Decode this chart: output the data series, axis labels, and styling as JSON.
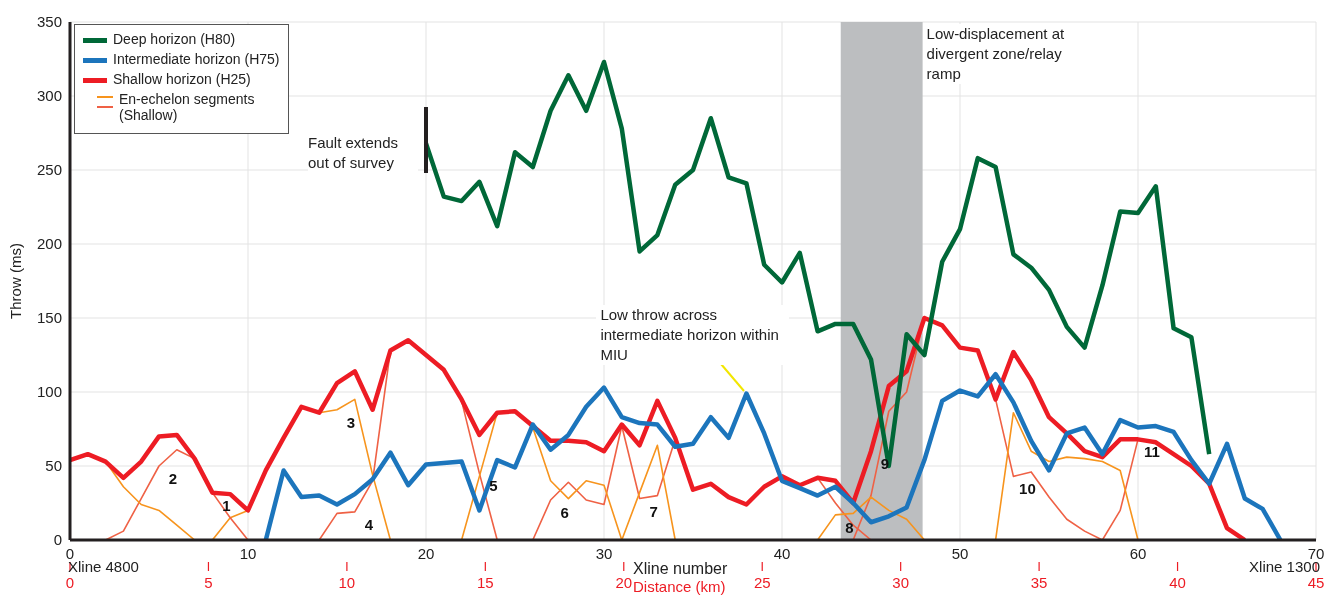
{
  "chart_data": {
    "type": "line",
    "xlabel": "Xline number",
    "x2label": "Distance (km)",
    "ylabel": "Throw (ms)",
    "xlim": [
      0,
      70
    ],
    "xticks": [
      0,
      10,
      20,
      30,
      40,
      50,
      60,
      70
    ],
    "x2lim": [
      0,
      45
    ],
    "x2ticks": [
      0,
      5,
      10,
      15,
      20,
      25,
      30,
      35,
      40,
      45
    ],
    "ylim": [
      0,
      350
    ],
    "yticks": [
      0,
      50,
      100,
      150,
      200,
      250,
      300,
      350
    ],
    "grid": true,
    "legend": "top left",
    "series": [
      {
        "name": "Deep horizon (H80)",
        "color": "#006838",
        "x": [
          20,
          21,
          22,
          23,
          24,
          25,
          26,
          27,
          28,
          29,
          30,
          31,
          32,
          33,
          34,
          35,
          36,
          37,
          38,
          39,
          40,
          41,
          42,
          43,
          44,
          45,
          46,
          47,
          48,
          49,
          50,
          51,
          52,
          53,
          54,
          55,
          56,
          57,
          58,
          59,
          60,
          61,
          62,
          63,
          64
        ],
        "values": [
          268,
          232,
          229,
          242,
          212,
          262,
          252,
          290,
          314,
          290,
          323,
          278,
          195,
          206,
          240,
          250,
          285,
          245,
          241,
          186,
          174,
          194,
          141,
          146,
          146,
          122,
          50,
          139,
          125,
          188,
          210,
          258,
          252,
          193,
          184,
          169,
          144,
          130,
          172,
          222,
          221,
          239,
          143,
          137,
          58
        ]
      },
      {
        "name": "Intermediate horizon (H75)",
        "color": "#1c75bc",
        "x": [
          11,
          12,
          13,
          14,
          15,
          16,
          17,
          18,
          19,
          20,
          21,
          22,
          23,
          24,
          25,
          26,
          27,
          28,
          29,
          30,
          31,
          32,
          33,
          34,
          35,
          36,
          37,
          38,
          39,
          40,
          41,
          42,
          43,
          44,
          45,
          46,
          47,
          48,
          49,
          50,
          51,
          52,
          53,
          54,
          55,
          56,
          57,
          58,
          59,
          60,
          61,
          62,
          63,
          64,
          65,
          66,
          67,
          68
        ],
        "values": [
          0,
          47,
          29,
          30,
          24,
          31,
          41,
          59,
          37,
          51,
          52,
          53,
          20,
          54,
          49,
          78,
          61,
          71,
          90,
          103,
          83,
          79,
          78,
          63,
          65,
          83,
          69,
          99,
          72,
          40,
          35,
          30,
          36,
          25,
          12,
          16,
          22,
          54,
          94,
          101,
          97,
          112,
          93,
          67,
          47,
          72,
          76,
          58,
          81,
          76,
          77,
          73,
          54,
          38,
          65,
          28,
          21,
          0
        ]
      },
      {
        "name": "Shallow horizon (H25)",
        "color": "#ed1c24",
        "x": [
          0,
          1,
          2,
          3,
          4,
          5,
          6,
          7,
          8,
          9,
          10,
          11,
          12,
          13,
          14,
          15,
          16,
          17,
          18,
          19,
          20,
          21,
          22,
          23,
          24,
          25,
          26,
          27,
          28,
          29,
          30,
          31,
          32,
          33,
          34,
          35,
          36,
          37,
          38,
          39,
          40,
          41,
          42,
          43,
          44,
          45,
          46,
          47,
          48,
          49,
          50,
          51,
          52,
          53,
          54,
          55,
          56,
          57,
          58,
          59,
          60,
          61,
          62,
          63,
          64,
          65,
          66
        ],
        "values": [
          54,
          58,
          53,
          42,
          53,
          70,
          71,
          55,
          32,
          31,
          20,
          47,
          69,
          90,
          86,
          106,
          114,
          88,
          128,
          135,
          125,
          115,
          95,
          71,
          86,
          87,
          77,
          67,
          67,
          66,
          60,
          78,
          64,
          94,
          69,
          34,
          38,
          29,
          24,
          36,
          43,
          37,
          42,
          40,
          25,
          60,
          104,
          114,
          150,
          145,
          130,
          128,
          95,
          127,
          108,
          83,
          72,
          60,
          56,
          68,
          68,
          66,
          58,
          50,
          38,
          8,
          0
        ]
      },
      {
        "name": "En-echelon segments (Shallow)",
        "color": "#f7941d",
        "x": [
          2,
          3,
          4,
          5,
          6,
          7
        ],
        "values": [
          53,
          36,
          24,
          20,
          10,
          0
        ]
      },
      {
        "color": "#ef6145",
        "x": [
          2,
          3,
          4,
          5,
          6,
          7,
          8,
          9,
          10
        ],
        "values": [
          0,
          6,
          28,
          50,
          61,
          55,
          32,
          15,
          0
        ]
      },
      {
        "color": "#f7941d",
        "x": [
          8,
          9,
          10
        ],
        "values": [
          0,
          15,
          20
        ]
      },
      {
        "color": "#f7941d",
        "x": [
          14,
          15,
          16,
          17,
          18
        ],
        "values": [
          86,
          88,
          95,
          44,
          0
        ]
      },
      {
        "color": "#ef6145",
        "x": [
          14,
          15,
          16,
          17,
          18
        ],
        "values": [
          0,
          18,
          19,
          40,
          128
        ]
      },
      {
        "color": "#f7941d",
        "x": [
          22,
          23,
          24
        ],
        "values": [
          0,
          43,
          86
        ]
      },
      {
        "color": "#ef6145",
        "x": [
          22,
          23,
          24
        ],
        "values": [
          94,
          45,
          0
        ]
      },
      {
        "color": "#f7941d",
        "x": [
          26,
          27,
          28,
          29,
          30,
          31
        ],
        "values": [
          76,
          40,
          28,
          40,
          37,
          0
        ]
      },
      {
        "color": "#ef6145",
        "x": [
          26,
          27,
          28,
          29,
          30,
          31
        ],
        "values": [
          0,
          27,
          39,
          27,
          24,
          77
        ]
      },
      {
        "color": "#f7941d",
        "x": [
          31,
          32,
          33,
          34
        ],
        "values": [
          0,
          32,
          64,
          0
        ]
      },
      {
        "color": "#ef6145",
        "x": [
          31,
          32,
          33,
          34
        ],
        "values": [
          77,
          28,
          30,
          68
        ]
      },
      {
        "color": "#f7941d",
        "x": [
          42,
          43,
          44,
          45,
          46,
          47,
          48
        ],
        "values": [
          0,
          17,
          18,
          29,
          20,
          14,
          0
        ]
      },
      {
        "color": "#ef6145",
        "x": [
          42,
          43,
          44,
          45
        ],
        "values": [
          42,
          25,
          10,
          0
        ]
      },
      {
        "color": "#ef6145",
        "x": [
          44,
          45,
          46,
          47,
          48
        ],
        "values": [
          0,
          30,
          87,
          100,
          150
        ]
      },
      {
        "color": "#f7941d",
        "x": [
          52,
          53,
          54,
          55,
          56,
          57,
          58,
          59,
          60
        ],
        "values": [
          0,
          86,
          60,
          53,
          56,
          55,
          53,
          47,
          0
        ]
      },
      {
        "color": "#ef6145",
        "x": [
          52,
          53,
          54,
          55,
          56,
          57,
          58
        ],
        "values": [
          95,
          43,
          46,
          29,
          14,
          6,
          0
        ]
      },
      {
        "color": "#ef6145",
        "x": [
          58,
          59,
          60
        ],
        "values": [
          0,
          20,
          68
        ]
      }
    ],
    "bands": [
      {
        "axis": "x",
        "from": 43.3,
        "to": 47.9,
        "label": "Low-displacement at divergent zone/relay ramp",
        "color": "#bcbec0"
      }
    ],
    "annotations": [
      {
        "text": "Fault extends out of survey",
        "x": 20,
        "y": 268
      },
      {
        "text": "Low throw across intermediate horizon within MIU",
        "x": 38,
        "y": 99
      },
      "Xline 4800",
      "Xline 1300",
      {
        "text": "1",
        "x": 8,
        "y": 32
      },
      {
        "text": "2",
        "x": 5,
        "y": 50
      },
      {
        "text": "3",
        "x": 15,
        "y": 88
      },
      {
        "text": "4",
        "x": 16,
        "y": 19
      },
      {
        "text": "5",
        "x": 23,
        "y": 45
      },
      {
        "text": "6",
        "x": 27,
        "y": 27
      },
      {
        "text": "7",
        "x": 32,
        "y": 28
      },
      {
        "text": "8",
        "x": 43,
        "y": 17
      },
      {
        "text": "9",
        "x": 45,
        "y": 60
      },
      {
        "text": "10",
        "x": 53,
        "y": 43
      },
      {
        "text": "11",
        "x": 60,
        "y": 68
      }
    ]
  }
}
